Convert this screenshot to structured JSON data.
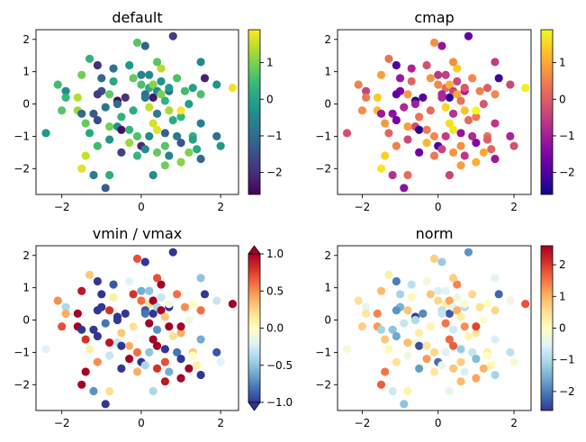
{
  "chart_data": [
    {
      "type": "scatter",
      "title": "default",
      "colormap": "viridis",
      "xlim": [
        -2.65,
        2.45
      ],
      "ylim": [
        -2.8,
        2.3
      ],
      "xticks": [
        -2,
        0,
        2
      ],
      "xtick_labels": [
        "−2",
        "0",
        "2"
      ],
      "yticks": [
        -2,
        -1,
        0,
        1,
        2
      ],
      "ytick_labels": [
        "−2",
        "−1",
        "0",
        "1",
        "2"
      ],
      "colorbar": {
        "range": [
          -2.6,
          1.9
        ],
        "ticks": [
          -2,
          -1,
          0,
          1
        ],
        "tick_labels": [
          "−2",
          "−1",
          "0",
          "1"
        ],
        "extend": "neither"
      }
    },
    {
      "type": "scatter",
      "title": "cmap",
      "colormap": "plasma",
      "xlim": [
        -2.65,
        2.45
      ],
      "ylim": [
        -2.8,
        2.3
      ],
      "xticks": [
        -2,
        0,
        2
      ],
      "xtick_labels": [
        "−2",
        "0",
        "2"
      ],
      "yticks": [
        -2,
        -1,
        0,
        1,
        2
      ],
      "ytick_labels": [
        "−2",
        "−1",
        "0",
        "1",
        "2"
      ],
      "colorbar": {
        "range": [
          -2.6,
          1.9
        ],
        "ticks": [
          -2,
          -1,
          0,
          1
        ],
        "tick_labels": [
          "−2",
          "−1",
          "0",
          "1"
        ],
        "extend": "neither"
      }
    },
    {
      "type": "scatter",
      "title": "vmin / vmax",
      "colormap": "RdYlBu_r",
      "xlim": [
        -2.65,
        2.45
      ],
      "ylim": [
        -2.8,
        2.3
      ],
      "xticks": [
        -2,
        0,
        2
      ],
      "xtick_labels": [
        "−2",
        "0",
        "2"
      ],
      "yticks": [
        -2,
        -1,
        0,
        1,
        2
      ],
      "ytick_labels": [
        "−2",
        "−1",
        "0",
        "1",
        "2"
      ],
      "colorbar": {
        "range": [
          -1,
          1
        ],
        "ticks": [
          -1,
          -0.5,
          0,
          0.5,
          1
        ],
        "tick_labels": [
          "−1.0",
          "−0.5",
          "0.0",
          "0.5",
          "1.0"
        ],
        "extend": "both"
      }
    },
    {
      "type": "scatter",
      "title": "norm",
      "colormap": "RdYlBu_r",
      "xlim": [
        -2.65,
        2.45
      ],
      "ylim": [
        -2.8,
        2.3
      ],
      "xticks": [
        -2,
        0,
        2
      ],
      "xtick_labels": [
        "−2",
        "0",
        "2"
      ],
      "yticks": [
        -2,
        -1,
        0,
        1,
        2
      ],
      "ytick_labels": [
        "−2",
        "−1",
        "0",
        "1",
        "2"
      ],
      "colorbar": {
        "range": [
          -2.6,
          2.6
        ],
        "ticks": [
          -2,
          -1,
          0,
          1,
          2
        ],
        "tick_labels": [
          "−2",
          "−1",
          "0",
          "1",
          "2"
        ],
        "extend": "neither"
      }
    }
  ],
  "points": {
    "x": [
      -1.3,
      -1.1,
      -0.1,
      0.1,
      0.8,
      -0.7,
      -0.3,
      0.5,
      -2.1,
      -1.9,
      -1.5,
      -1.0,
      -0.7,
      0.0,
      0.2,
      0.3,
      0.9,
      1.5,
      1.9,
      2.3,
      -1.9,
      -1.0,
      -0.8,
      -0.4,
      0.0,
      0.1,
      0.3,
      0.4,
      0.5,
      0.6,
      0.7,
      1.1,
      1.3,
      -2.0,
      -1.6,
      -1.2,
      -0.9,
      -0.6,
      -0.2,
      0.2,
      0.4,
      0.7,
      1.0,
      1.2,
      -1.4,
      -1.1,
      -0.6,
      0.3,
      0.8,
      1.5,
      -2.4,
      -1.5,
      -1.3,
      -0.8,
      -0.5,
      -0.1,
      0.2,
      0.4,
      0.6,
      0.9,
      1.3,
      1.9,
      -1.1,
      -0.8,
      -0.3,
      0.0,
      0.1,
      0.6,
      1.0,
      1.3,
      2.0,
      -1.4,
      -0.5,
      -0.1,
      0.4,
      0.7,
      1.2,
      -1.5,
      -1.2,
      0.6,
      1.5,
      -0.8,
      0.3,
      1.0,
      -1.1,
      -0.2,
      0.5,
      1.5,
      -0.6,
      -1.6,
      -0.5,
      0.2,
      1.0,
      1.6,
      0.4,
      -0.9,
      1.4,
      0.1,
      -0.3,
      0.7
    ],
    "y": [
      1.4,
      1.2,
      1.9,
      1.8,
      2.1,
      1.1,
      1.2,
      1.1,
      0.6,
      0.4,
      0.9,
      0.8,
      0.7,
      0.9,
      0.5,
      0.6,
      0.8,
      1.3,
      0.6,
      0.5,
      0.2,
      0.4,
      0.3,
      0.2,
      0.6,
      0.3,
      0.2,
      0.4,
      0.3,
      0.1,
      0.4,
      0.4,
      0.5,
      -0.2,
      -0.2,
      -0.3,
      -0.1,
      0.1,
      -0.2,
      -0.1,
      -0.3,
      -0.2,
      -0.4,
      0.0,
      -0.6,
      -0.5,
      -0.7,
      -0.6,
      -0.5,
      -0.6,
      -0.9,
      -0.3,
      -0.9,
      -0.7,
      -0.8,
      -1.0,
      -1.0,
      -0.8,
      -0.9,
      -1.0,
      -1.0,
      -1.0,
      -1.3,
      -1.1,
      -1.2,
      -1.3,
      -1.4,
      -1.3,
      -1.2,
      -1.1,
      -1.3,
      -1.6,
      -1.5,
      -1.6,
      -1.5,
      -1.6,
      -1.5,
      -2.0,
      -2.2,
      -1.9,
      -1.7,
      -2.2,
      -2.2,
      -1.8,
      0.3,
      0.8,
      0.7,
      0.3,
      0.0,
      0.2,
      -0.4,
      0.9,
      -0.2,
      0.8,
      1.3,
      -2.6,
      -1.4,
      0.2,
      -0.8,
      0.5
    ],
    "c": [
      0.3,
      -2.0,
      0.7,
      -1.2,
      -1.8,
      -0.9,
      -0.2,
      1.4,
      0.5,
      -0.4,
      0.9,
      -1.1,
      0.1,
      -0.6,
      0.2,
      1.1,
      0.6,
      -0.5,
      -0.3,
      1.8,
      0.4,
      -1.5,
      0.8,
      -1.9,
      0.6,
      -0.9,
      -2.3,
      -0.4,
      1.0,
      0.3,
      -1.0,
      0.5,
      0.0,
      0.7,
      1.2,
      -1.3,
      -0.8,
      -2.5,
      0.2,
      1.5,
      -0.7,
      1.3,
      0.4,
      -0.1,
      0.8,
      -1.6,
      -0.3,
      1.6,
      0.2,
      -0.6,
      -0.2,
      -1.1,
      0.1,
      0.9,
      -2.4,
      0.6,
      -0.5,
      1.7,
      -1.2,
      -0.8,
      0.3,
      -0.9,
      0.5,
      -0.3,
      1.2,
      -2.1,
      -0.4,
      0.7,
      -1.4,
      0.0,
      -0.2,
      1.5,
      -1.7,
      0.4,
      0.8,
      -0.6,
      1.0,
      1.7,
      -0.7,
      0.9,
      -1.1,
      0.2,
      -0.4,
      1.1,
      -1.8,
      0.8,
      -0.3,
      0.6,
      -1.0,
      1.4,
      0.3,
      -0.5,
      1.9,
      -2.2,
      0.7,
      -1.3,
      0.1,
      -0.8,
      0.4,
      -0.1
    ]
  }
}
